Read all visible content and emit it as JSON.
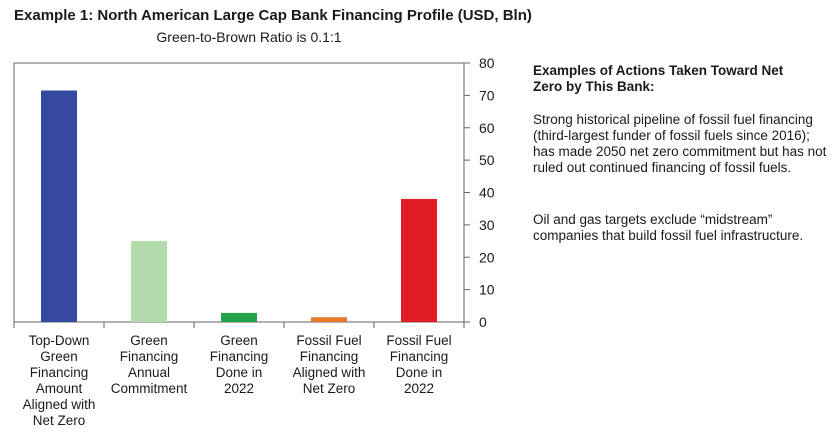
{
  "title": "Example 1: North American Large Cap Bank Financing Profile (USD, Bln)",
  "subtitle": "Green-to-Brown Ratio is 0.1:1",
  "chart_data": {
    "type": "bar",
    "title": "Example 1: North American Large Cap Bank Financing Profile (USD, Bln)",
    "subtitle": "Green-to-Brown Ratio is 0.1:1",
    "categories": [
      "Top-Down Green Financing Amount Aligned with Net Zero",
      "Green Financing Annual Commitment",
      "Green Financing Done in 2022",
      "Fossil Fuel Financing Aligned with Net Zero",
      "Fossil Fuel Financing Done in 2022"
    ],
    "category_lines": [
      [
        "Top-Down",
        "Green",
        "Financing",
        "Amount",
        "Aligned with",
        "Net Zero"
      ],
      [
        "Green",
        "Financing",
        "Annual",
        "Commitment"
      ],
      [
        "Green",
        "Financing",
        "Done in",
        "2022"
      ],
      [
        "Fossil Fuel",
        "Financing",
        "Aligned with",
        "Net Zero"
      ],
      [
        "Fossil Fuel",
        "Financing",
        "Done in",
        "2022"
      ]
    ],
    "values": [
      71.5,
      25,
      2.8,
      1.5,
      38
    ],
    "colors": [
      "#3449a0",
      "#b2dbab",
      "#21a44a",
      "#e5792b",
      "#e01d25"
    ],
    "ylim": [
      0,
      80
    ],
    "yticks": [
      0,
      10,
      20,
      30,
      40,
      50,
      60,
      70,
      80
    ],
    "y_axis_side": "right",
    "xlabel": "",
    "ylabel": ""
  },
  "side_panel": {
    "heading": "Examples of Actions Taken Toward Net Zero by This Bank:",
    "paragraphs": [
      "Strong historical pipeline of fossil fuel financing (third-largest funder of fossil fuels since 2016); has made 2050 net zero commitment but has not ruled out continued financing of fossil fuels.",
      "Oil and gas targets exclude “midstream” companies that build fossil fuel infrastructure."
    ]
  }
}
